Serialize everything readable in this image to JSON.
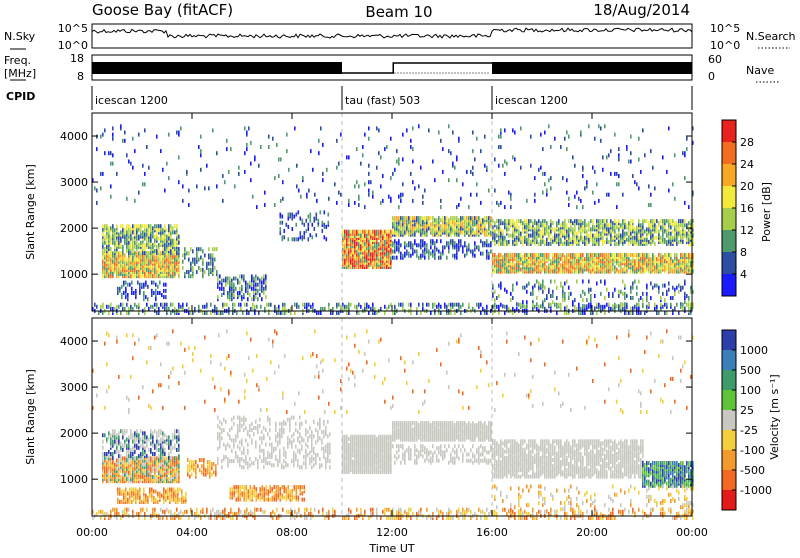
{
  "header": {
    "station": "Goose Bay (fitACF)",
    "beam": "Beam 10",
    "date": "18/Aug/2014"
  },
  "strips": {
    "nsky": {
      "label": "N.Sky",
      "tick_top": "10^5",
      "tick_bottom": "10^0"
    },
    "nsearch": {
      "label": "N.Search",
      "tick_top": "10^5",
      "tick_bottom": "10^0"
    },
    "freq": {
      "label_line1": "Freq.",
      "label_line2": "[MHz]",
      "tick_top": "18",
      "tick_bottom": "8"
    },
    "nave": {
      "label": "Nave",
      "tick_top": "60",
      "tick_bottom": "0"
    },
    "cpid": {
      "label": "CPID",
      "segments": [
        {
          "name": "icescan 1200",
          "start_hour": 0,
          "end_hour": 10
        },
        {
          "name": "tau (fast) 503",
          "start_hour": 10,
          "end_hour": 16
        },
        {
          "name": "icescan 1200",
          "start_hour": 16,
          "end_hour": 24
        }
      ]
    }
  },
  "chart_data": [
    {
      "type": "heatmap",
      "parameter": "power",
      "ylabel": "Slant Range [km]",
      "xlabel": "",
      "x_range_hours": [
        0,
        24
      ],
      "ylim": [
        200,
        4500
      ],
      "y_ticks": [
        "1000",
        "2000",
        "3000",
        "4000"
      ],
      "colorbar": {
        "label": "Power [dB]",
        "ticks": [
          "28",
          "24",
          "20",
          "16",
          "12",
          "8",
          "4"
        ],
        "colors": [
          "#e8221c",
          "#f36d21",
          "#f9a826",
          "#f2e93a",
          "#a3cf4a",
          "#4e9a6b",
          "#2c4ea3",
          "#1b1bff"
        ]
      }
    },
    {
      "type": "heatmap",
      "parameter": "velocity",
      "ylabel": "Slant Range [km]",
      "xlabel": "Time UT",
      "x_range_hours": [
        0,
        24
      ],
      "x_ticks": [
        "00:00",
        "04:00",
        "08:00",
        "12:00",
        "16:00",
        "20:00",
        "00:00"
      ],
      "ylim": [
        200,
        4500
      ],
      "y_ticks": [
        "1000",
        "2000",
        "3000",
        "4000"
      ],
      "colorbar": {
        "label": "Velocity [m s⁻¹]",
        "ticks": [
          "1000",
          "500",
          "100",
          "25",
          "-25",
          "-100",
          "-500",
          "-1000"
        ],
        "colors": [
          "#2c3fa8",
          "#3a7fb8",
          "#3d9b6c",
          "#5fc43a",
          "#c8c8c0",
          "#f4cf3c",
          "#f39a2c",
          "#f26a22",
          "#e21a1a"
        ]
      }
    }
  ]
}
